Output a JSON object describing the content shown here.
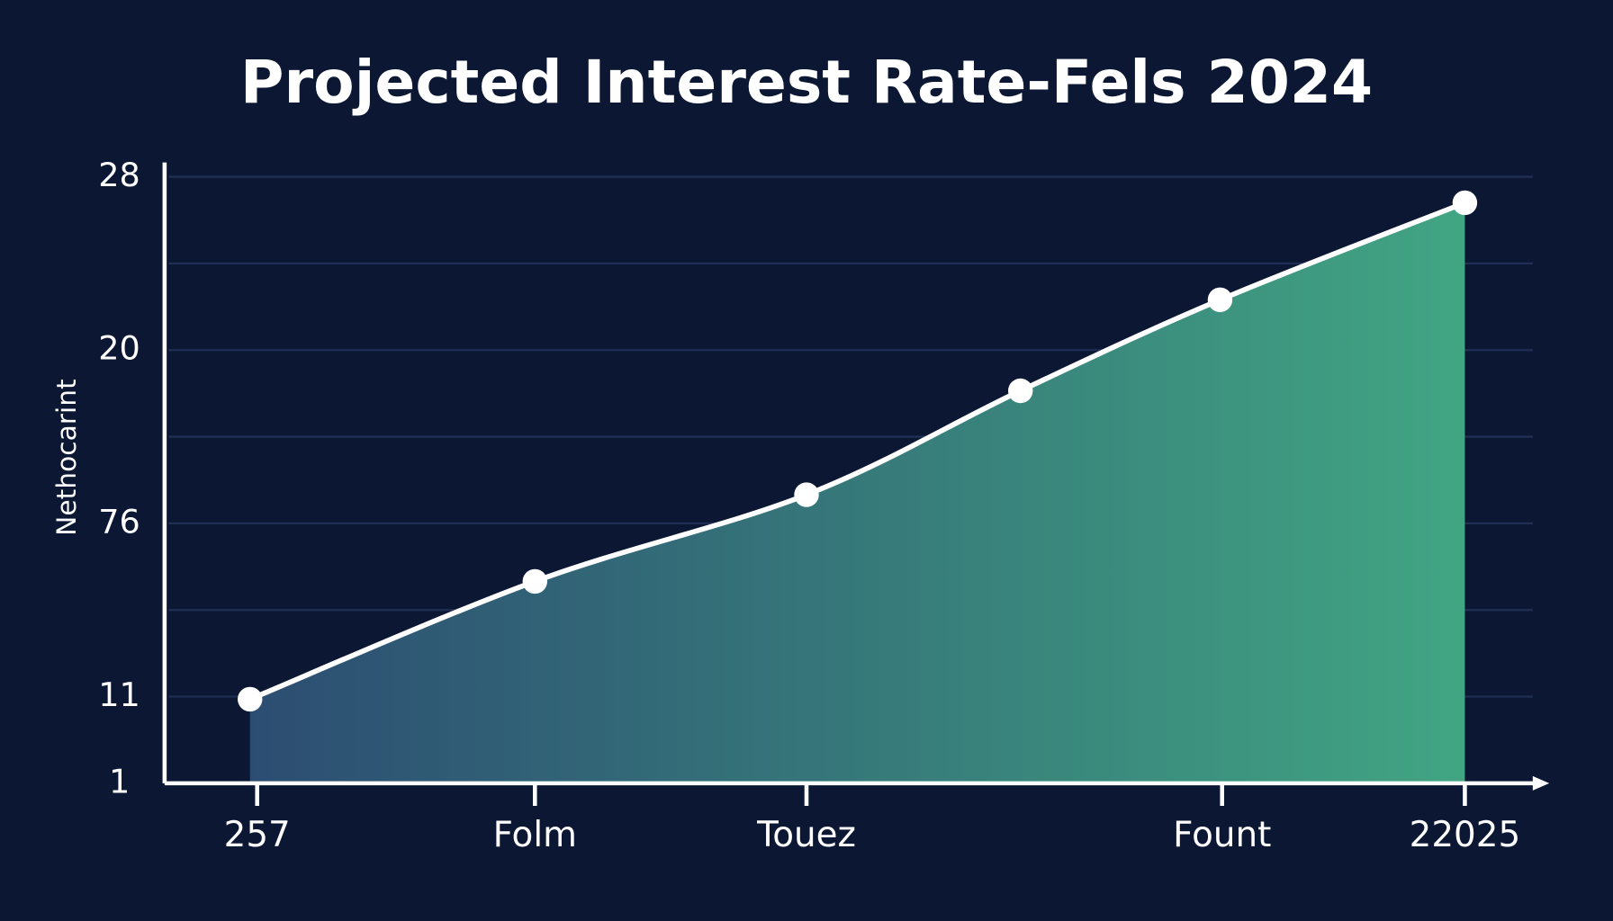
{
  "chart_data": {
    "type": "area",
    "title": "Projected Interest Rate-Fels 2024",
    "ylabel": "Nethocarint",
    "x": [
      0.83,
      3.6,
      6.24,
      8.32,
      10.26,
      12.64
    ],
    "series": [
      {
        "color": "#ffffff",
        "fill_from": "#2c4d72",
        "fill_to": "#41a582",
        "values": [
          0.97,
          2.33,
          3.33,
          4.53,
          5.58,
          6.7
        ]
      }
    ],
    "xlim": [
      0,
      13.4
    ],
    "xticks": [
      {
        "value": 0.9,
        "label": "257"
      },
      {
        "value": 3.6,
        "label": "Folm"
      },
      {
        "value": 6.24,
        "label": "Touez"
      },
      {
        "value": 10.28,
        "label": "Fount"
      },
      {
        "value": 12.64,
        "label": "22025"
      }
    ],
    "ylim": [
      0,
      7
    ],
    "yticks": [
      {
        "value": 0,
        "label": "1"
      },
      {
        "value": 1,
        "label": "11"
      },
      {
        "value": 2,
        "label": null
      },
      {
        "value": 3,
        "label": "76"
      },
      {
        "value": 4,
        "label": null
      },
      {
        "value": 5,
        "label": "20"
      },
      {
        "value": 6,
        "label": null
      },
      {
        "value": 7,
        "label": "28"
      }
    ],
    "grid": true
  }
}
